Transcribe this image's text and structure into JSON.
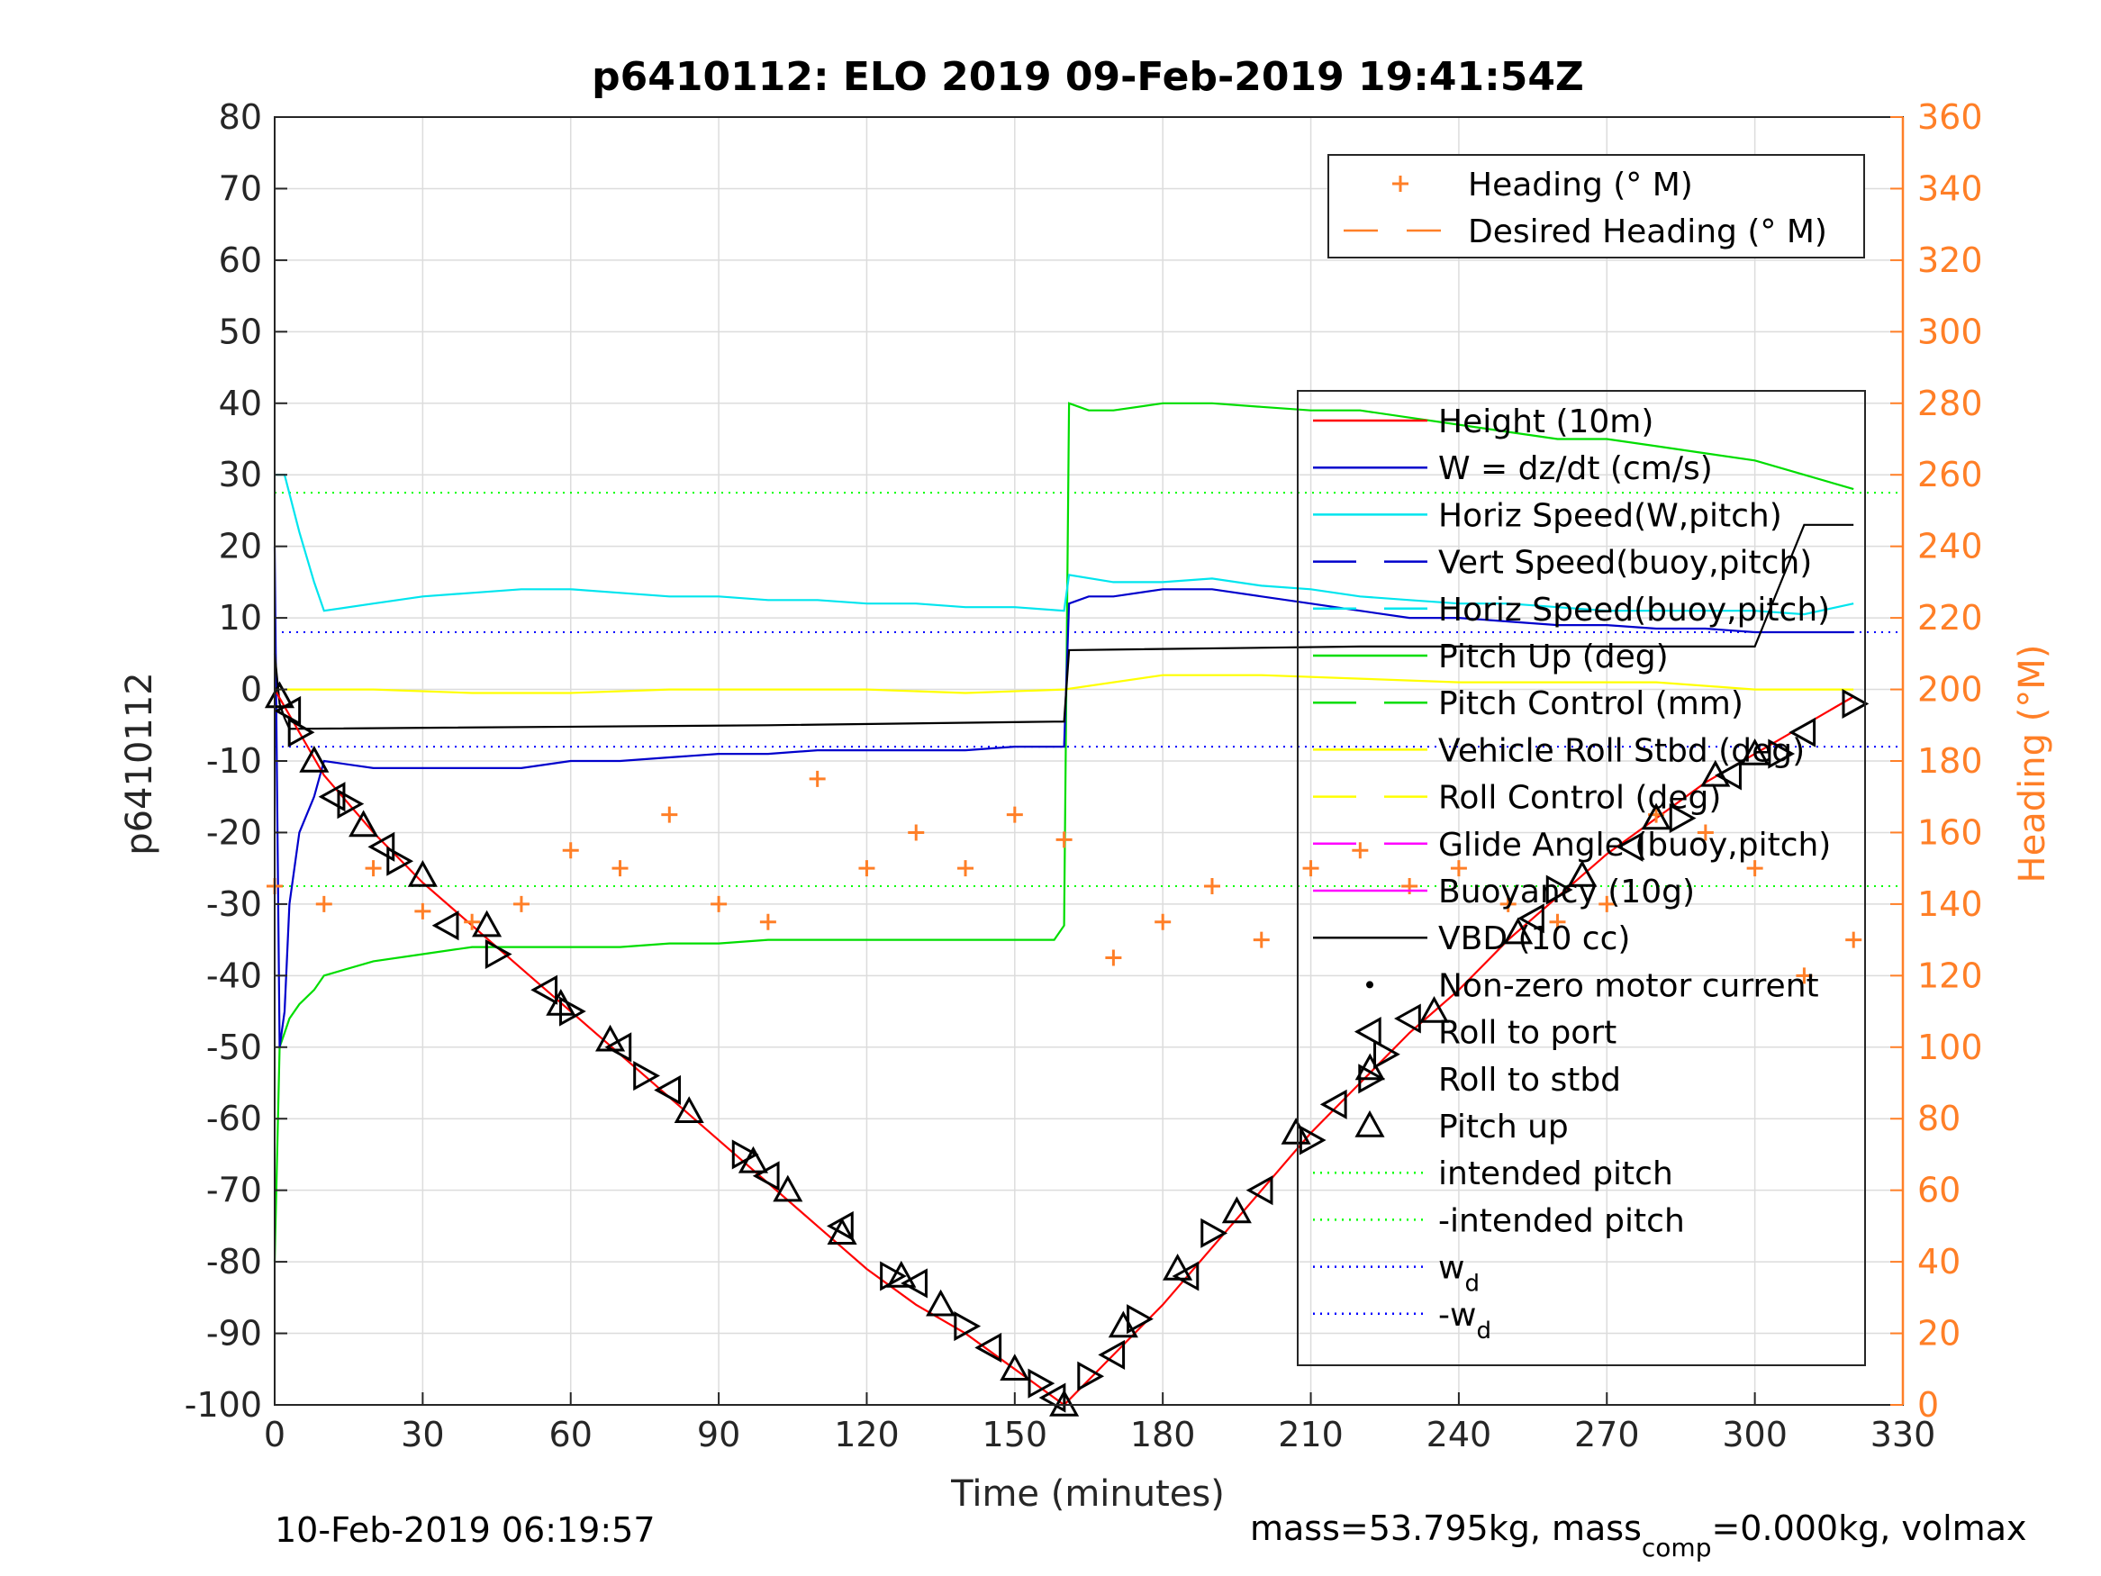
{
  "chart_data": {
    "type": "line",
    "title": "p6410112: ELO 2019 09-Feb-2019 19:41:54Z",
    "xlabel": "Time (minutes)",
    "ylabel_left": "p6410112",
    "ylabel_right": "Heading (°M)",
    "xlim": [
      0,
      330
    ],
    "ylim_left": [
      -100,
      80
    ],
    "ylim_right": [
      0,
      360
    ],
    "x_ticks": [
      "0",
      "30",
      "60",
      "90",
      "120",
      "150",
      "180",
      "210",
      "240",
      "270",
      "300",
      "330"
    ],
    "y_left_ticks": [
      "80",
      "70",
      "60",
      "50",
      "40",
      "30",
      "20",
      "10",
      "0",
      "-10",
      "-20",
      "-30",
      "-40",
      "-50",
      "-60",
      "-70",
      "-80",
      "-90",
      "-100"
    ],
    "y_right_ticks": [
      "360",
      "340",
      "320",
      "300",
      "280",
      "260",
      "240",
      "220",
      "200",
      "180",
      "160",
      "140",
      "120",
      "100",
      "80",
      "60",
      "40",
      "20",
      "0"
    ],
    "grid": true,
    "footer_left": "10-Feb-2019 06:19:57",
    "footer_right": {
      "prefix": "mass=53.795kg, mass",
      "sub": "comp",
      "suffix": "=0.000kg, volmax"
    },
    "legend_heading": [
      {
        "label": "Heading (° M)",
        "marker": "+",
        "color": "#ff7f27"
      },
      {
        "label": "Desired Heading (° M)",
        "marker": "dash",
        "color": "#ff7f27"
      }
    ],
    "legend_main": [
      {
        "label": "Height (10m)",
        "style": "solid",
        "color": "#ff0000"
      },
      {
        "label": "W = dz/dt (cm/s)",
        "style": "solid",
        "color": "#0000cc"
      },
      {
        "label": "Horiz Speed(W,pitch)",
        "style": "solid",
        "color": "#00e5ee"
      },
      {
        "label": "Vert Speed(buoy,pitch)",
        "style": "dash",
        "color": "#0000cc"
      },
      {
        "label": "Horiz Speed(buoy,pitch)",
        "style": "dash",
        "color": "#00e5ee"
      },
      {
        "label": "Pitch Up (deg)",
        "style": "solid",
        "color": "#00dd00"
      },
      {
        "label": "Pitch Control (mm)",
        "style": "dash",
        "color": "#00dd00"
      },
      {
        "label": "Vehicle Roll Stbd (deg)",
        "style": "solid",
        "color": "#ffff00"
      },
      {
        "label": "Roll Control (deg)",
        "style": "dash",
        "color": "#ffff00"
      },
      {
        "label": "Glide Angle (buoy,pitch)",
        "style": "dash",
        "color": "#ff00ff"
      },
      {
        "label": "Buoyancy (10g)",
        "style": "solid",
        "color": "#ff00ff"
      },
      {
        "label": "VBD (10 cc)",
        "style": "solid",
        "color": "#000000"
      },
      {
        "label": "Non-zero motor current",
        "style": "dot-marker",
        "color": "#000000"
      },
      {
        "label": "Roll to port",
        "style": "tri-left",
        "color": "#000000"
      },
      {
        "label": "Roll to stbd",
        "style": "tri-right",
        "color": "#000000"
      },
      {
        "label": "Pitch up",
        "style": "tri-up",
        "color": "#000000"
      },
      {
        "label": "intended pitch",
        "style": "dot",
        "color": "#00ff00"
      },
      {
        "label": "-intended pitch",
        "style": "dot",
        "color": "#00ff00"
      },
      {
        "label": "w",
        "sub": "d",
        "style": "dot",
        "color": "#0000ff"
      },
      {
        "label": "-w",
        "sub": "d",
        "style": "dot",
        "color": "#0000ff"
      }
    ],
    "reference_lines": [
      {
        "name": "intended pitch",
        "y": 27.5,
        "color": "#00ff00"
      },
      {
        "name": "-intended pitch",
        "y": -27.5,
        "color": "#00ff00"
      },
      {
        "name": "w_d",
        "y": 8,
        "color": "#0000ff"
      },
      {
        "name": "-w_d",
        "y": -8,
        "color": "#0000ff"
      }
    ],
    "series": [
      {
        "name": "Height (10m)",
        "color": "#ff0000",
        "axis": "left",
        "x": [
          0,
          10,
          20,
          30,
          40,
          50,
          60,
          70,
          80,
          90,
          100,
          110,
          120,
          130,
          140,
          150,
          160,
          170,
          180,
          190,
          200,
          210,
          220,
          230,
          240,
          250,
          260,
          270,
          280,
          290,
          300,
          310,
          320
        ],
        "y": [
          0,
          -12,
          -20,
          -27,
          -33,
          -39,
          -45,
          -51,
          -57,
          -63,
          -69,
          -75,
          -81,
          -86,
          -90,
          -95,
          -100,
          -93,
          -86,
          -78,
          -70,
          -62,
          -55,
          -48,
          -42,
          -35,
          -29,
          -23,
          -18,
          -13,
          -9,
          -5,
          -1
        ]
      },
      {
        "name": "W = dz/dt (cm/s)",
        "color": "#0000cc",
        "axis": "left",
        "x": [
          0,
          1,
          2,
          3,
          5,
          8,
          10,
          20,
          30,
          40,
          50,
          60,
          70,
          80,
          90,
          100,
          110,
          120,
          130,
          140,
          150,
          155,
          160,
          161,
          165,
          170,
          180,
          190,
          200,
          210,
          220,
          230,
          240,
          250,
          260,
          270,
          280,
          290,
          300,
          310,
          320
        ],
        "y": [
          20,
          -50,
          -45,
          -30,
          -20,
          -15,
          -10,
          -11,
          -11,
          -11,
          -11,
          -10,
          -10,
          -9.5,
          -9,
          -9,
          -8.5,
          -8.5,
          -8.5,
          -8.5,
          -8,
          -8,
          -8,
          12,
          13,
          13,
          14,
          14,
          13,
          12,
          11,
          10,
          10,
          9.5,
          9,
          9,
          8.5,
          8.5,
          8,
          8,
          8
        ]
      },
      {
        "name": "Horiz Speed(W,pitch)",
        "color": "#00e5ee",
        "axis": "left",
        "x": [
          0,
          2,
          5,
          8,
          10,
          20,
          30,
          40,
          50,
          60,
          70,
          80,
          90,
          100,
          110,
          120,
          130,
          140,
          150,
          160,
          161,
          170,
          180,
          190,
          200,
          210,
          220,
          230,
          240,
          250,
          260,
          270,
          280,
          290,
          300,
          310,
          320
        ],
        "y": [
          30,
          30,
          22,
          15,
          11,
          12,
          13,
          13.5,
          14,
          14,
          13.5,
          13,
          13,
          12.5,
          12.5,
          12,
          12,
          11.5,
          11.5,
          11,
          16,
          15,
          15,
          15.5,
          14.5,
          14,
          13,
          12.5,
          12,
          12,
          11.5,
          11,
          11,
          11,
          11,
          10.5,
          12
        ]
      },
      {
        "name": "Pitch Up (deg)",
        "color": "#00dd00",
        "axis": "left",
        "x": [
          0,
          1,
          2,
          3,
          5,
          8,
          10,
          20,
          30,
          40,
          50,
          60,
          70,
          80,
          90,
          100,
          110,
          120,
          130,
          140,
          150,
          158,
          160,
          161,
          165,
          170,
          180,
          190,
          200,
          210,
          220,
          230,
          240,
          250,
          260,
          270,
          280,
          290,
          300,
          310,
          320
        ],
        "y": [
          -80,
          -50,
          -48,
          -46,
          -44,
          -42,
          -40,
          -38,
          -37,
          -36,
          -36,
          -36,
          -36,
          -35.5,
          -35.5,
          -35,
          -35,
          -35,
          -35,
          -35,
          -35,
          -35,
          -33,
          40,
          39,
          39,
          40,
          40,
          39.5,
          39,
          39,
          38,
          37,
          36,
          35,
          35,
          34,
          33,
          32,
          30,
          28
        ]
      },
      {
        "name": "VBD (10 cc)",
        "color": "#000000",
        "axis": "left",
        "x": [
          0,
          1,
          2,
          3,
          100,
          158,
          160,
          161,
          220,
          300,
          310,
          320
        ],
        "y": [
          5,
          -2,
          -4,
          -5.5,
          -5,
          -4.5,
          -4.5,
          5.5,
          6,
          6,
          23,
          23
        ]
      },
      {
        "name": "Vehicle Roll Stbd (deg)",
        "color": "#ffff00",
        "axis": "left",
        "x": [
          0,
          20,
          40,
          60,
          80,
          100,
          120,
          140,
          160,
          180,
          200,
          220,
          240,
          260,
          280,
          300,
          320
        ],
        "y": [
          0,
          0,
          -0.5,
          -0.5,
          0,
          0,
          0,
          -0.5,
          0,
          2,
          2,
          1.5,
          1,
          1,
          1,
          0,
          0
        ]
      },
      {
        "name": "Heading (° M)",
        "color": "#ff7f27",
        "axis": "right",
        "marker": "+",
        "x": [
          0,
          10,
          20,
          30,
          40,
          50,
          60,
          70,
          80,
          90,
          100,
          110,
          120,
          130,
          140,
          150,
          160,
          170,
          180,
          190,
          200,
          210,
          220,
          230,
          240,
          250,
          260,
          270,
          280,
          290,
          300,
          310,
          320
        ],
        "y": [
          145,
          140,
          150,
          138,
          135,
          140,
          155,
          150,
          165,
          140,
          135,
          175,
          150,
          160,
          150,
          165,
          158,
          125,
          135,
          145,
          130,
          150,
          155,
          145,
          150,
          140,
          135,
          140,
          165,
          160,
          150,
          120,
          130
        ]
      },
      {
        "name": "Roll to port",
        "color": "#000000",
        "axis": "left",
        "marker": "tri-left",
        "x": [
          3,
          12,
          22,
          35,
          55,
          70,
          80,
          100,
          115,
          130,
          145,
          158,
          170,
          185,
          200,
          215,
          230,
          255,
          275,
          295,
          310
        ],
        "y": [
          -3,
          -15,
          -22,
          -33,
          -42,
          -50,
          -56,
          -68,
          -75,
          -83,
          -92,
          -99,
          -93,
          -82,
          -70,
          -58,
          -46,
          -32,
          -22,
          -12,
          -6
        ]
      },
      {
        "name": "Roll to stbd",
        "color": "#000000",
        "axis": "left",
        "marker": "tri-right",
        "x": [
          5,
          15,
          25,
          45,
          60,
          75,
          95,
          125,
          140,
          155,
          165,
          175,
          190,
          210,
          225,
          260,
          285,
          305,
          320
        ],
        "y": [
          -6,
          -16,
          -24,
          -37,
          -45,
          -54,
          -65,
          -82,
          -89,
          -97,
          -96,
          -88,
          -76,
          -63,
          -51,
          -28,
          -18,
          -9,
          -2
        ]
      },
      {
        "name": "Pitch up",
        "color": "#000000",
        "axis": "left",
        "marker": "tri-up",
        "x": [
          1,
          8,
          18,
          30,
          43,
          58,
          68,
          84,
          97,
          104,
          115,
          127,
          135,
          150,
          160,
          172,
          183,
          195,
          207,
          222,
          235,
          252,
          265,
          280,
          292,
          300
        ],
        "y": [
          -1,
          -10,
          -19,
          -26,
          -33,
          -44,
          -49,
          -59,
          -66,
          -70,
          -76,
          -82,
          -86,
          -95,
          -100,
          -89,
          -81,
          -73,
          -62,
          -53,
          -45,
          -34,
          -26,
          -18,
          -12,
          -9
        ]
      }
    ]
  }
}
